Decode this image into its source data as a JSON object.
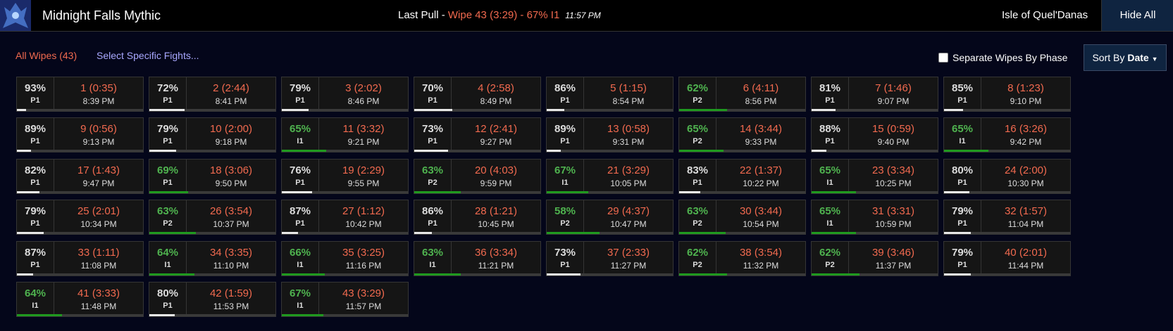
{
  "header": {
    "title": "Midnight Falls Mythic",
    "last_pull_label": "Last Pull - ",
    "last_pull_result": "Wipe 43 (3:29) - 67% I1",
    "last_pull_time": "11:57 PM",
    "zone": "Isle of Quel'Danas",
    "hide_all": "Hide All"
  },
  "toolbar": {
    "all_wipes": "All Wipes (43)",
    "select_fights": "Select Specific Fights...",
    "separate_phase": "Separate Wipes By Phase",
    "sort_by": "Sort By",
    "sort_value": "Date"
  },
  "fights": [
    {
      "pct": 93,
      "pct_label": "93%",
      "phase": "P1",
      "label": "1 (0:35)",
      "time": "8:39 PM"
    },
    {
      "pct": 72,
      "pct_label": "72%",
      "phase": "P1",
      "label": "2 (2:44)",
      "time": "8:41 PM"
    },
    {
      "pct": 79,
      "pct_label": "79%",
      "phase": "P1",
      "label": "3 (2:02)",
      "time": "8:46 PM"
    },
    {
      "pct": 70,
      "pct_label": "70%",
      "phase": "P1",
      "label": "4 (2:58)",
      "time": "8:49 PM"
    },
    {
      "pct": 86,
      "pct_label": "86%",
      "phase": "P1",
      "label": "5 (1:15)",
      "time": "8:54 PM"
    },
    {
      "pct": 62,
      "pct_label": "62%",
      "phase": "P2",
      "label": "6 (4:11)",
      "time": "8:56 PM"
    },
    {
      "pct": 81,
      "pct_label": "81%",
      "phase": "P1",
      "label": "7 (1:46)",
      "time": "9:07 PM"
    },
    {
      "pct": 85,
      "pct_label": "85%",
      "phase": "P1",
      "label": "8 (1:23)",
      "time": "9:10 PM"
    },
    {
      "pct": 89,
      "pct_label": "89%",
      "phase": "P1",
      "label": "9 (0:56)",
      "time": "9:13 PM"
    },
    {
      "pct": 79,
      "pct_label": "79%",
      "phase": "P1",
      "label": "10 (2:00)",
      "time": "9:18 PM"
    },
    {
      "pct": 65,
      "pct_label": "65%",
      "phase": "I1",
      "label": "11 (3:32)",
      "time": "9:21 PM"
    },
    {
      "pct": 73,
      "pct_label": "73%",
      "phase": "P1",
      "label": "12 (2:41)",
      "time": "9:27 PM"
    },
    {
      "pct": 89,
      "pct_label": "89%",
      "phase": "P1",
      "label": "13 (0:58)",
      "time": "9:31 PM"
    },
    {
      "pct": 65,
      "pct_label": "65%",
      "phase": "P2",
      "label": "14 (3:44)",
      "time": "9:33 PM"
    },
    {
      "pct": 88,
      "pct_label": "88%",
      "phase": "P1",
      "label": "15 (0:59)",
      "time": "9:40 PM"
    },
    {
      "pct": 65,
      "pct_label": "65%",
      "phase": "I1",
      "label": "16 (3:26)",
      "time": "9:42 PM"
    },
    {
      "pct": 82,
      "pct_label": "82%",
      "phase": "P1",
      "label": "17 (1:43)",
      "time": "9:47 PM"
    },
    {
      "pct": 69,
      "pct_label": "69%",
      "phase": "P1",
      "label": "18 (3:06)",
      "time": "9:50 PM"
    },
    {
      "pct": 76,
      "pct_label": "76%",
      "phase": "P1",
      "label": "19 (2:29)",
      "time": "9:55 PM"
    },
    {
      "pct": 63,
      "pct_label": "63%",
      "phase": "P2",
      "label": "20 (4:03)",
      "time": "9:59 PM"
    },
    {
      "pct": 67,
      "pct_label": "67%",
      "phase": "I1",
      "label": "21 (3:29)",
      "time": "10:05 PM"
    },
    {
      "pct": 83,
      "pct_label": "83%",
      "phase": "P1",
      "label": "22 (1:37)",
      "time": "10:22 PM"
    },
    {
      "pct": 65,
      "pct_label": "65%",
      "phase": "I1",
      "label": "23 (3:34)",
      "time": "10:25 PM"
    },
    {
      "pct": 80,
      "pct_label": "80%",
      "phase": "P1",
      "label": "24 (2:00)",
      "time": "10:30 PM"
    },
    {
      "pct": 79,
      "pct_label": "79%",
      "phase": "P1",
      "label": "25 (2:01)",
      "time": "10:34 PM"
    },
    {
      "pct": 63,
      "pct_label": "63%",
      "phase": "P2",
      "label": "26 (3:54)",
      "time": "10:37 PM"
    },
    {
      "pct": 87,
      "pct_label": "87%",
      "phase": "P1",
      "label": "27 (1:12)",
      "time": "10:42 PM"
    },
    {
      "pct": 86,
      "pct_label": "86%",
      "phase": "P1",
      "label": "28 (1:21)",
      "time": "10:45 PM"
    },
    {
      "pct": 58,
      "pct_label": "58%",
      "phase": "P2",
      "label": "29 (4:37)",
      "time": "10:47 PM"
    },
    {
      "pct": 63,
      "pct_label": "63%",
      "phase": "P2",
      "label": "30 (3:44)",
      "time": "10:54 PM"
    },
    {
      "pct": 65,
      "pct_label": "65%",
      "phase": "I1",
      "label": "31 (3:31)",
      "time": "10:59 PM"
    },
    {
      "pct": 79,
      "pct_label": "79%",
      "phase": "P1",
      "label": "32 (1:57)",
      "time": "11:04 PM"
    },
    {
      "pct": 87,
      "pct_label": "87%",
      "phase": "P1",
      "label": "33 (1:11)",
      "time": "11:08 PM"
    },
    {
      "pct": 64,
      "pct_label": "64%",
      "phase": "I1",
      "label": "34 (3:35)",
      "time": "11:10 PM"
    },
    {
      "pct": 66,
      "pct_label": "66%",
      "phase": "I1",
      "label": "35 (3:25)",
      "time": "11:16 PM"
    },
    {
      "pct": 63,
      "pct_label": "63%",
      "phase": "I1",
      "label": "36 (3:34)",
      "time": "11:21 PM"
    },
    {
      "pct": 73,
      "pct_label": "73%",
      "phase": "P1",
      "label": "37 (2:33)",
      "time": "11:27 PM"
    },
    {
      "pct": 62,
      "pct_label": "62%",
      "phase": "P2",
      "label": "38 (3:54)",
      "time": "11:32 PM"
    },
    {
      "pct": 62,
      "pct_label": "62%",
      "phase": "P2",
      "label": "39 (3:46)",
      "time": "11:37 PM"
    },
    {
      "pct": 79,
      "pct_label": "79%",
      "phase": "P1",
      "label": "40 (2:01)",
      "time": "11:44 PM"
    },
    {
      "pct": 64,
      "pct_label": "64%",
      "phase": "I1",
      "label": "41 (3:33)",
      "time": "11:48 PM"
    },
    {
      "pct": 80,
      "pct_label": "80%",
      "phase": "P1",
      "label": "42 (1:59)",
      "time": "11:53 PM"
    },
    {
      "pct": 67,
      "pct_label": "67%",
      "phase": "I1",
      "label": "43 (3:29)",
      "time": "11:57 PM"
    }
  ]
}
